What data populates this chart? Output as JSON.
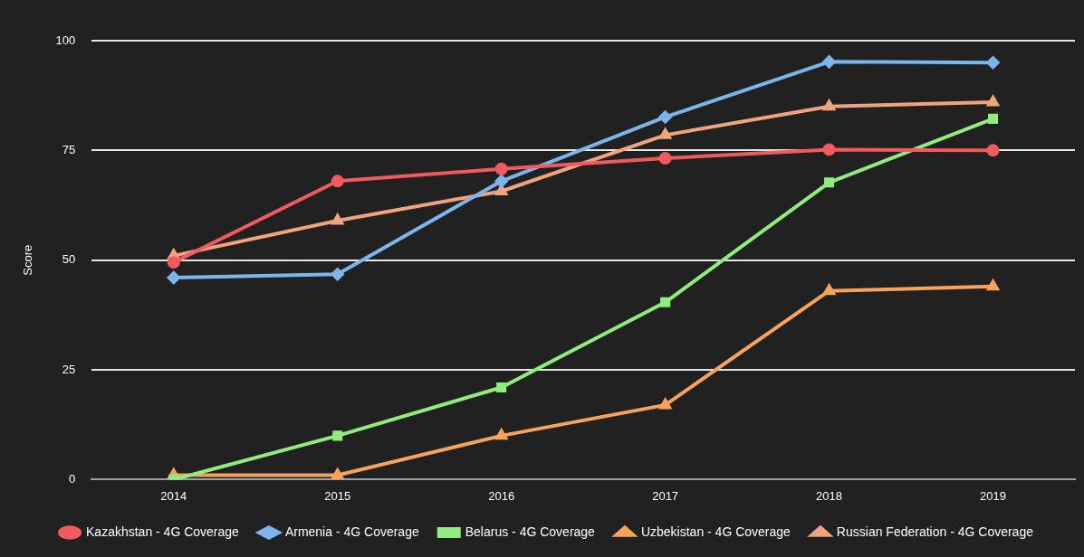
{
  "chart_data": {
    "type": "line",
    "ylabel": "Score",
    "categories": [
      "2014",
      "2015",
      "2016",
      "2017",
      "2018",
      "2019"
    ],
    "series": [
      {
        "name": "Kazakhstan - 4G Coverage",
        "color": "#f15a5f",
        "marker": "circle",
        "values": [
          49.5,
          68,
          70.8,
          73.2,
          75.2,
          75
        ]
      },
      {
        "name": "Armenia - 4G Coverage",
        "color": "#7cb5ec",
        "marker": "diamond",
        "values": [
          46,
          46.8,
          68,
          82.6,
          95.2,
          95
        ]
      },
      {
        "name": "Belarus - 4G Coverage",
        "color": "#90ed7d",
        "marker": "square",
        "values": [
          0,
          10,
          21,
          40.4,
          67.7,
          82.2
        ]
      },
      {
        "name": "Uzbekistan - 4G Coverage",
        "color": "#f7a35c",
        "marker": "triangle",
        "values": [
          1,
          1,
          10,
          17,
          43,
          44
        ]
      },
      {
        "name": "Russian Federation - 4G Coverage",
        "color": "#f0a37f",
        "marker": "triangle",
        "values": [
          51,
          59,
          65.7,
          78.5,
          85,
          86
        ]
      }
    ],
    "ylim": [
      0,
      100
    ],
    "yticks": [
      0,
      25,
      50,
      75,
      100
    ],
    "grid": "y",
    "legend": "bottom",
    "line_style": "solid"
  }
}
